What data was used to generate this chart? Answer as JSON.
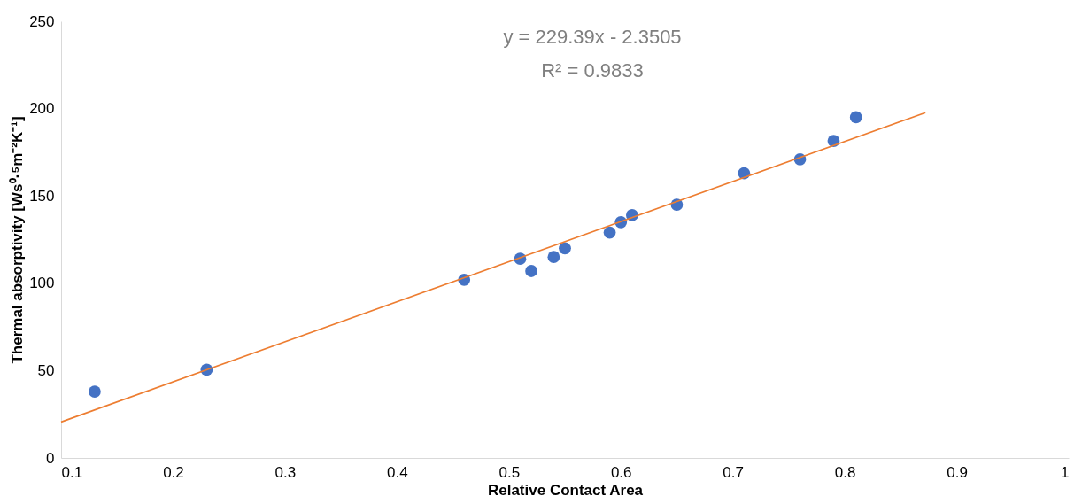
{
  "chart_data": {
    "type": "scatter",
    "xlabel": "Relative Contact Area",
    "ylabel": "Thermal absorptivity [Ws⁰·⁵m⁻²K⁻¹]",
    "annotations": [
      "y = 229.39x - 2.3505",
      "R² = 0.9833"
    ],
    "xlim": [
      0.1,
      1
    ],
    "xticks": [
      0.1,
      0.2,
      0.3,
      0.4,
      0.5,
      0.6,
      0.7,
      0.8,
      0.9,
      1
    ],
    "ylim": [
      0,
      250
    ],
    "yticks": [
      0,
      50,
      100,
      150,
      200,
      250
    ],
    "grid": false,
    "series": [
      {
        "color": "#4472c4",
        "marker": "circle",
        "x": [
          0.13,
          0.23,
          0.46,
          0.51,
          0.52,
          0.54,
          0.55,
          0.59,
          0.6,
          0.61,
          0.65,
          0.71,
          0.76,
          0.79,
          0.81
        ],
        "values": [
          38,
          50.5,
          102,
          114,
          107,
          115,
          120,
          129,
          135,
          139,
          145,
          163,
          171,
          181.5,
          195
        ]
      },
      {
        "type": "line",
        "color": "#ed7d31",
        "line_style": "solid",
        "x": [
          0.1,
          0.872
        ],
        "values": [
          20.6,
          197.7
        ]
      }
    ]
  }
}
